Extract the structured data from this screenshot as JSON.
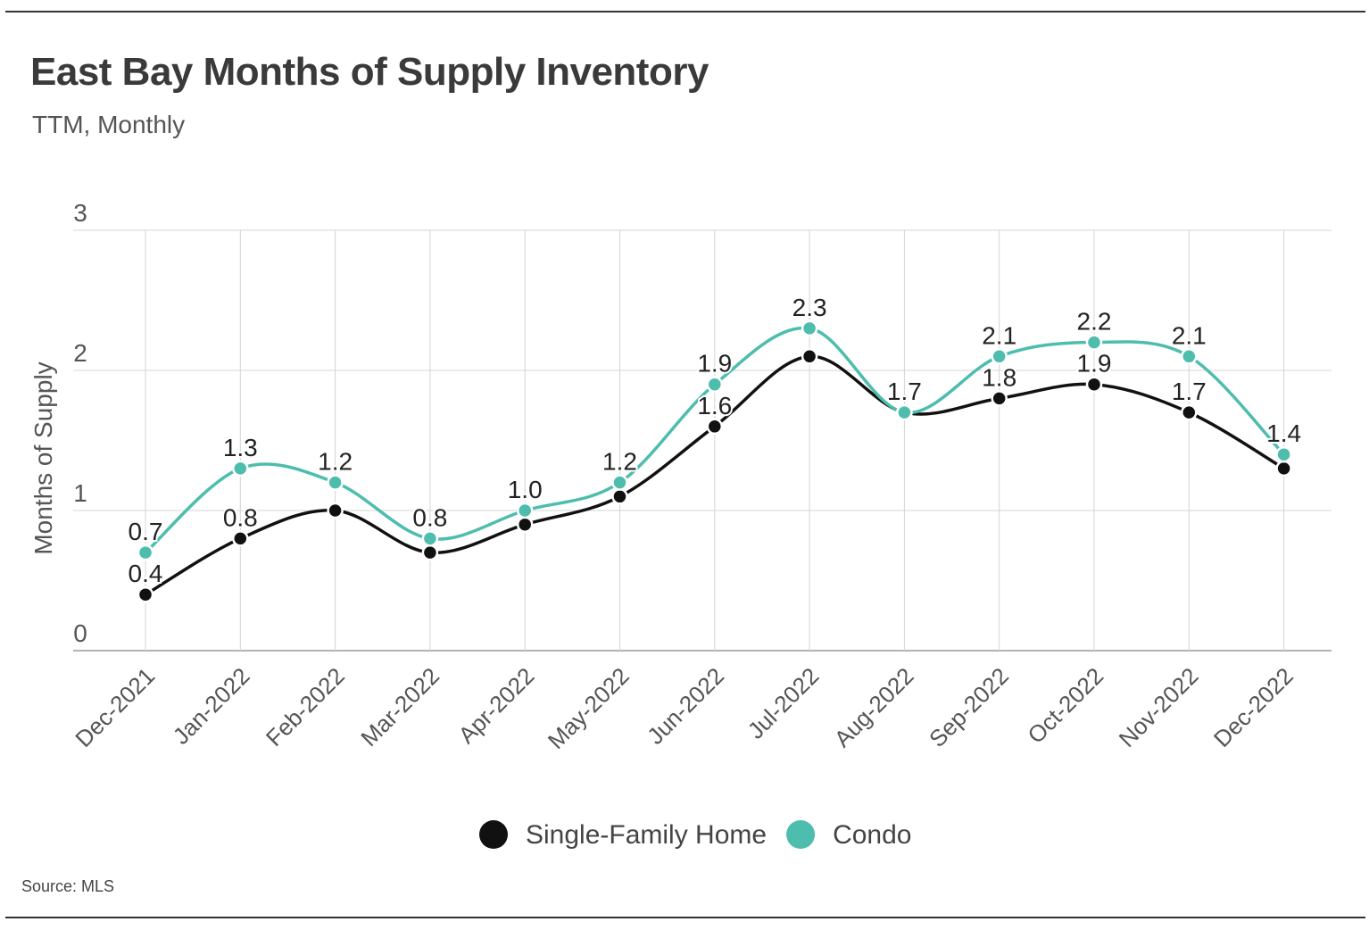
{
  "header": {
    "title": "East Bay Months of Supply Inventory",
    "subtitle": "TTM, Monthly"
  },
  "footer": {
    "source": "Source:  MLS"
  },
  "chart_data": {
    "type": "line",
    "title": "East Bay Months of Supply Inventory",
    "subtitle": "TTM, Monthly",
    "xlabel": "",
    "ylabel": "Months of Supply",
    "ylim": [
      0,
      3
    ],
    "yticks": [
      "0",
      "1",
      "2",
      "3"
    ],
    "grid": true,
    "legend_position": "bottom-center",
    "categories": [
      "Dec-2021",
      "Jan-2022",
      "Feb-2022",
      "Mar-2022",
      "Apr-2022",
      "May-2022",
      "Jun-2022",
      "Jul-2022",
      "Aug-2022",
      "Sep-2022",
      "Oct-2022",
      "Nov-2022",
      "Dec-2022"
    ],
    "series": [
      {
        "name": "Single-Family Home",
        "color": "#111111",
        "values": [
          0.4,
          0.8,
          1.0,
          0.7,
          0.9,
          1.1,
          1.6,
          2.1,
          1.7,
          1.8,
          1.9,
          1.7,
          1.3
        ],
        "labels": [
          "0.4",
          "0.8",
          "",
          "",
          "",
          "",
          "1.6",
          "",
          "",
          "1.8",
          "1.9",
          "1.7",
          ""
        ]
      },
      {
        "name": "Condo",
        "color": "#4dbdad",
        "values": [
          0.7,
          1.3,
          1.2,
          0.8,
          1.0,
          1.2,
          1.9,
          2.3,
          1.7,
          2.1,
          2.2,
          2.1,
          1.4
        ],
        "labels": [
          "0.7",
          "1.3",
          "1.2",
          "0.8",
          "1.0",
          "1.2",
          "1.9",
          "2.3",
          "1.7",
          "2.1",
          "2.2",
          "2.1",
          "1.4"
        ]
      }
    ]
  }
}
